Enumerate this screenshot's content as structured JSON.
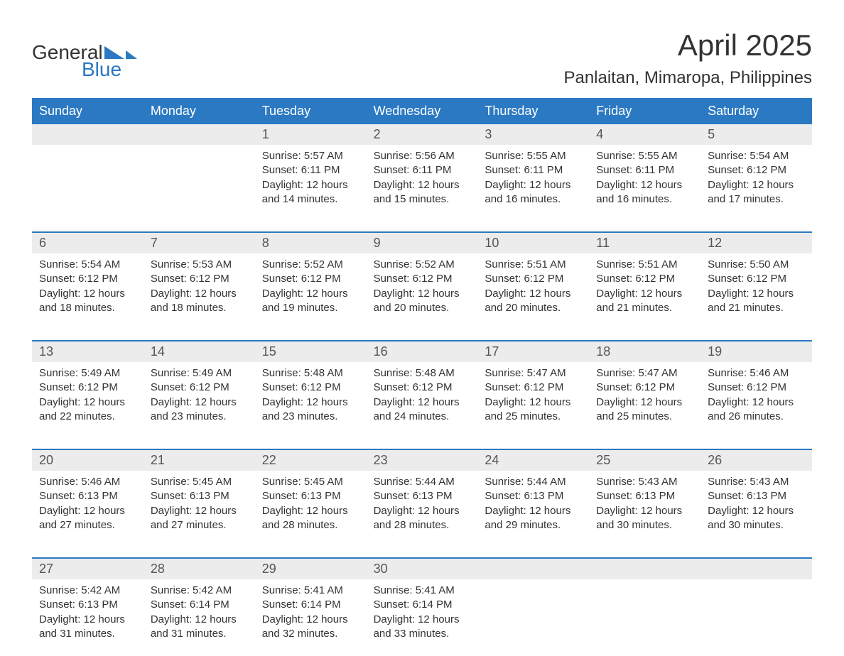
{
  "brand": {
    "word1": "General",
    "word2": "Blue",
    "logo_color": "#2b79c2",
    "text_color": "#333333"
  },
  "header": {
    "month_title": "April 2025",
    "location": "Panlaitan, Mimaropa, Philippines"
  },
  "colors": {
    "header_bg": "#2b79c2",
    "header_text": "#ffffff",
    "date_row_bg": "#ececec",
    "week_border": "#2b79c2",
    "body_text": "#333333",
    "date_text": "#555555",
    "background": "#ffffff"
  },
  "typography": {
    "title_fontsize": 42,
    "location_fontsize": 24,
    "header_fontsize": 18,
    "date_fontsize": 18,
    "cell_fontsize": 15,
    "font_family": "Arial"
  },
  "day_headers": [
    "Sunday",
    "Monday",
    "Tuesday",
    "Wednesday",
    "Thursday",
    "Friday",
    "Saturday"
  ],
  "weeks": [
    {
      "dates": [
        "",
        "",
        "1",
        "2",
        "3",
        "4",
        "5"
      ],
      "sunrise": [
        "",
        "",
        "Sunrise: 5:57 AM",
        "Sunrise: 5:56 AM",
        "Sunrise: 5:55 AM",
        "Sunrise: 5:55 AM",
        "Sunrise: 5:54 AM"
      ],
      "sunset": [
        "",
        "",
        "Sunset: 6:11 PM",
        "Sunset: 6:11 PM",
        "Sunset: 6:11 PM",
        "Sunset: 6:11 PM",
        "Sunset: 6:12 PM"
      ],
      "day1": [
        "",
        "",
        "Daylight: 12 hours",
        "Daylight: 12 hours",
        "Daylight: 12 hours",
        "Daylight: 12 hours",
        "Daylight: 12 hours"
      ],
      "day2": [
        "",
        "",
        "and 14 minutes.",
        "and 15 minutes.",
        "and 16 minutes.",
        "and 16 minutes.",
        "and 17 minutes."
      ]
    },
    {
      "dates": [
        "6",
        "7",
        "8",
        "9",
        "10",
        "11",
        "12"
      ],
      "sunrise": [
        "Sunrise: 5:54 AM",
        "Sunrise: 5:53 AM",
        "Sunrise: 5:52 AM",
        "Sunrise: 5:52 AM",
        "Sunrise: 5:51 AM",
        "Sunrise: 5:51 AM",
        "Sunrise: 5:50 AM"
      ],
      "sunset": [
        "Sunset: 6:12 PM",
        "Sunset: 6:12 PM",
        "Sunset: 6:12 PM",
        "Sunset: 6:12 PM",
        "Sunset: 6:12 PM",
        "Sunset: 6:12 PM",
        "Sunset: 6:12 PM"
      ],
      "day1": [
        "Daylight: 12 hours",
        "Daylight: 12 hours",
        "Daylight: 12 hours",
        "Daylight: 12 hours",
        "Daylight: 12 hours",
        "Daylight: 12 hours",
        "Daylight: 12 hours"
      ],
      "day2": [
        "and 18 minutes.",
        "and 18 minutes.",
        "and 19 minutes.",
        "and 20 minutes.",
        "and 20 minutes.",
        "and 21 minutes.",
        "and 21 minutes."
      ]
    },
    {
      "dates": [
        "13",
        "14",
        "15",
        "16",
        "17",
        "18",
        "19"
      ],
      "sunrise": [
        "Sunrise: 5:49 AM",
        "Sunrise: 5:49 AM",
        "Sunrise: 5:48 AM",
        "Sunrise: 5:48 AM",
        "Sunrise: 5:47 AM",
        "Sunrise: 5:47 AM",
        "Sunrise: 5:46 AM"
      ],
      "sunset": [
        "Sunset: 6:12 PM",
        "Sunset: 6:12 PM",
        "Sunset: 6:12 PM",
        "Sunset: 6:12 PM",
        "Sunset: 6:12 PM",
        "Sunset: 6:12 PM",
        "Sunset: 6:12 PM"
      ],
      "day1": [
        "Daylight: 12 hours",
        "Daylight: 12 hours",
        "Daylight: 12 hours",
        "Daylight: 12 hours",
        "Daylight: 12 hours",
        "Daylight: 12 hours",
        "Daylight: 12 hours"
      ],
      "day2": [
        "and 22 minutes.",
        "and 23 minutes.",
        "and 23 minutes.",
        "and 24 minutes.",
        "and 25 minutes.",
        "and 25 minutes.",
        "and 26 minutes."
      ]
    },
    {
      "dates": [
        "20",
        "21",
        "22",
        "23",
        "24",
        "25",
        "26"
      ],
      "sunrise": [
        "Sunrise: 5:46 AM",
        "Sunrise: 5:45 AM",
        "Sunrise: 5:45 AM",
        "Sunrise: 5:44 AM",
        "Sunrise: 5:44 AM",
        "Sunrise: 5:43 AM",
        "Sunrise: 5:43 AM"
      ],
      "sunset": [
        "Sunset: 6:13 PM",
        "Sunset: 6:13 PM",
        "Sunset: 6:13 PM",
        "Sunset: 6:13 PM",
        "Sunset: 6:13 PM",
        "Sunset: 6:13 PM",
        "Sunset: 6:13 PM"
      ],
      "day1": [
        "Daylight: 12 hours",
        "Daylight: 12 hours",
        "Daylight: 12 hours",
        "Daylight: 12 hours",
        "Daylight: 12 hours",
        "Daylight: 12 hours",
        "Daylight: 12 hours"
      ],
      "day2": [
        "and 27 minutes.",
        "and 27 minutes.",
        "and 28 minutes.",
        "and 28 minutes.",
        "and 29 minutes.",
        "and 30 minutes.",
        "and 30 minutes."
      ]
    },
    {
      "dates": [
        "27",
        "28",
        "29",
        "30",
        "",
        "",
        ""
      ],
      "sunrise": [
        "Sunrise: 5:42 AM",
        "Sunrise: 5:42 AM",
        "Sunrise: 5:41 AM",
        "Sunrise: 5:41 AM",
        "",
        "",
        ""
      ],
      "sunset": [
        "Sunset: 6:13 PM",
        "Sunset: 6:14 PM",
        "Sunset: 6:14 PM",
        "Sunset: 6:14 PM",
        "",
        "",
        ""
      ],
      "day1": [
        "Daylight: 12 hours",
        "Daylight: 12 hours",
        "Daylight: 12 hours",
        "Daylight: 12 hours",
        "",
        "",
        ""
      ],
      "day2": [
        "and 31 minutes.",
        "and 31 minutes.",
        "and 32 minutes.",
        "and 33 minutes.",
        "",
        "",
        ""
      ]
    }
  ]
}
